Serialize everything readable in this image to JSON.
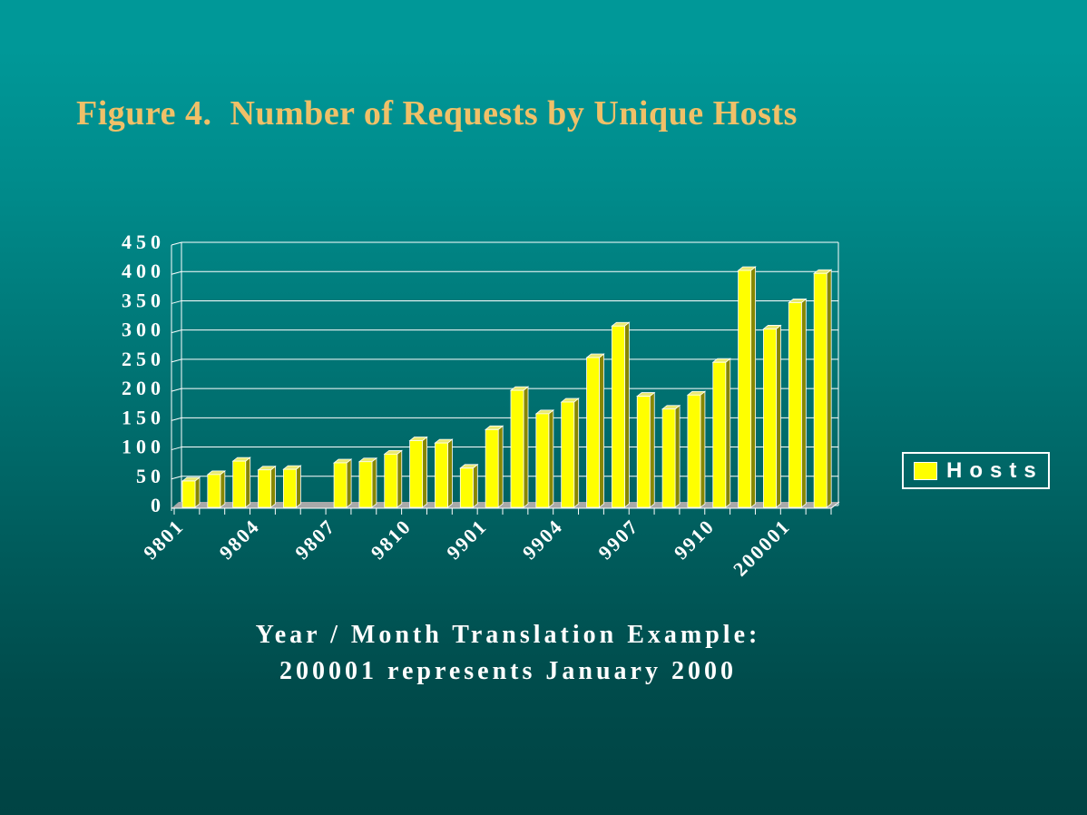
{
  "slide": {
    "title": "Figure 4.  Number of Requests by Unique Hosts",
    "caption_line1": "Year / Month Translation Example:",
    "caption_line2": "200001 represents January 2000"
  },
  "legend": {
    "label": "Hosts",
    "swatch_color": "#ffff00"
  },
  "colors": {
    "background_top": "#009898",
    "background_bottom": "#004343",
    "title_text": "#f0c068",
    "axis_text": "#ffffff",
    "gridline": "#ffffff",
    "bar_front": "#ffff00",
    "bar_side": "#878700",
    "bar_top": "#e9e972",
    "floor": "#a9a9a9"
  },
  "chart_data": {
    "type": "bar",
    "style": "3d-column",
    "title": "",
    "xlabel": "",
    "ylabel": "",
    "categories": [
      "9801",
      "9802",
      "9803",
      "9804",
      "9805",
      "9806",
      "9807",
      "9808",
      "9809",
      "9810",
      "9811",
      "9812",
      "9901",
      "9902",
      "9903",
      "9904",
      "9905",
      "9906",
      "9907",
      "9908",
      "9909",
      "9910",
      "9911",
      "9912",
      "200001",
      "200002"
    ],
    "values": [
      45,
      56,
      79,
      64,
      65,
      0,
      76,
      78,
      91,
      114,
      110,
      67,
      133,
      200,
      160,
      180,
      256,
      310,
      190,
      168,
      192,
      248,
      405,
      305,
      350,
      400
    ],
    "series": [
      {
        "name": "Hosts",
        "values": [
          45,
          56,
          79,
          64,
          65,
          0,
          76,
          78,
          91,
          114,
          110,
          67,
          133,
          200,
          160,
          180,
          256,
          310,
          190,
          168,
          192,
          248,
          405,
          305,
          350,
          400
        ]
      }
    ],
    "x_tick_labels_shown": [
      "9801",
      "9804",
      "9807",
      "9810",
      "9901",
      "9904",
      "9907",
      "9910",
      "200001"
    ],
    "x_label_every": 3,
    "y_ticks": [
      0,
      50,
      100,
      150,
      200,
      250,
      300,
      350,
      400,
      450
    ],
    "ylim": [
      0,
      450
    ],
    "grid": true,
    "legend": [
      "Hosts"
    ],
    "legend_position": "right"
  }
}
